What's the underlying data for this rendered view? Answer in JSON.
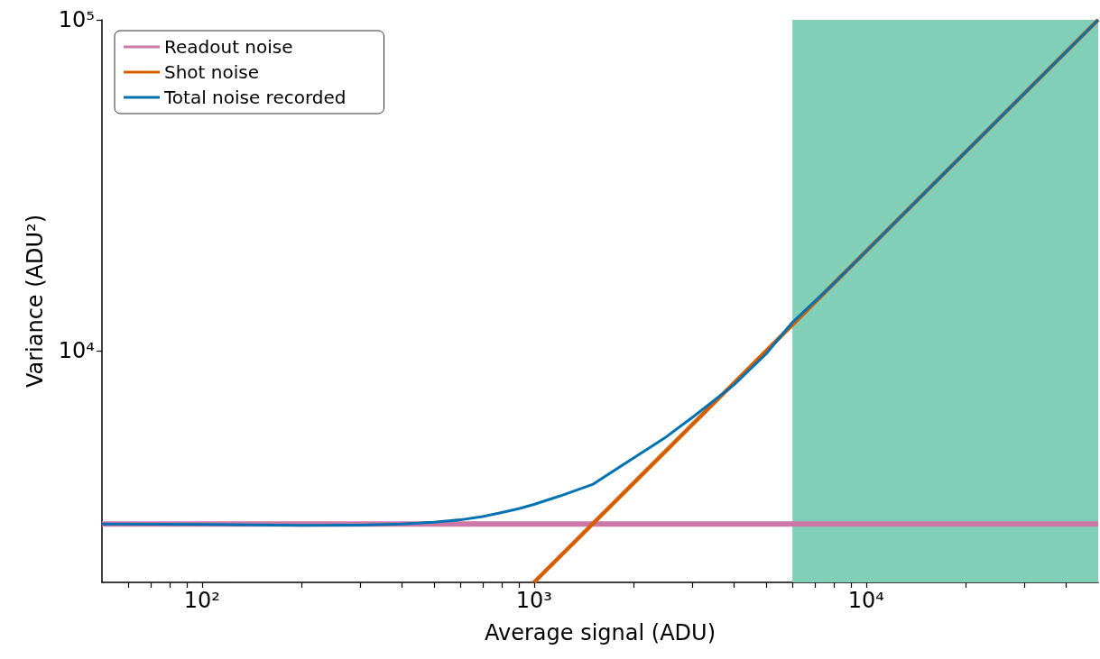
{
  "chart_data": {
    "type": "line",
    "xlabel": "Average signal (ADU)",
    "ylabel": "Variance (ADU²)",
    "log": "xy",
    "xlim": [
      50,
      50000
    ],
    "ylim": [
      2000,
      100000
    ],
    "xticks": [
      {
        "value": 60,
        "label": null
      },
      {
        "value": 70,
        "label": null
      },
      {
        "value": 80,
        "label": null
      },
      {
        "value": 90,
        "label": null
      },
      {
        "value": 100,
        "label": "10²"
      },
      {
        "value": 200,
        "label": null
      },
      {
        "value": 300,
        "label": null
      },
      {
        "value": 400,
        "label": null
      },
      {
        "value": 500,
        "label": null
      },
      {
        "value": 600,
        "label": null
      },
      {
        "value": 700,
        "label": null
      },
      {
        "value": 800,
        "label": null
      },
      {
        "value": 900,
        "label": null
      },
      {
        "value": 1000,
        "label": "10³"
      },
      {
        "value": 2000,
        "label": null
      },
      {
        "value": 3000,
        "label": null
      },
      {
        "value": 4000,
        "label": null
      },
      {
        "value": 5000,
        "label": null
      },
      {
        "value": 6000,
        "label": null
      },
      {
        "value": 7000,
        "label": null
      },
      {
        "value": 8000,
        "label": null
      },
      {
        "value": 9000,
        "label": null
      },
      {
        "value": 10000,
        "label": "10⁴"
      },
      {
        "value": 20000,
        "label": null
      },
      {
        "value": 30000,
        "label": null
      },
      {
        "value": 40000,
        "label": null
      }
    ],
    "yticks": [
      {
        "value": 10000,
        "label": "10⁴"
      },
      {
        "value": 100000,
        "label": "10⁵"
      }
    ],
    "grid": false,
    "legend": "top left",
    "marker": "none",
    "line_style": "solid",
    "bands": [
      {
        "axis": "x",
        "from": 6000,
        "to": 50000,
        "color": "#81cfb7"
      }
    ],
    "series": [
      {
        "name": "Readout noise",
        "color": "#cc79a7",
        "x": [
          50,
          50000
        ],
        "values": [
          3000,
          3000
        ]
      },
      {
        "name": "Shot noise",
        "color": "#d55e00",
        "x": [
          1000,
          50000
        ],
        "values": [
          2000,
          100000
        ]
      },
      {
        "name": "Total noise recorded",
        "color": "#0072b2",
        "x": [
          50,
          100,
          200,
          300,
          400,
          500,
          600,
          700,
          800,
          900,
          1000,
          1200,
          1500,
          2000,
          2500,
          3000,
          4000,
          5000,
          6000,
          8000,
          10000,
          20000,
          50000
        ],
        "values": [
          3000,
          2990,
          2975,
          2980,
          3000,
          3040,
          3090,
          3160,
          3250,
          3340,
          3440,
          3650,
          3950,
          4760,
          5500,
          6300,
          7900,
          9800,
          12200,
          16000,
          20000,
          40000,
          100000
        ]
      }
    ]
  }
}
